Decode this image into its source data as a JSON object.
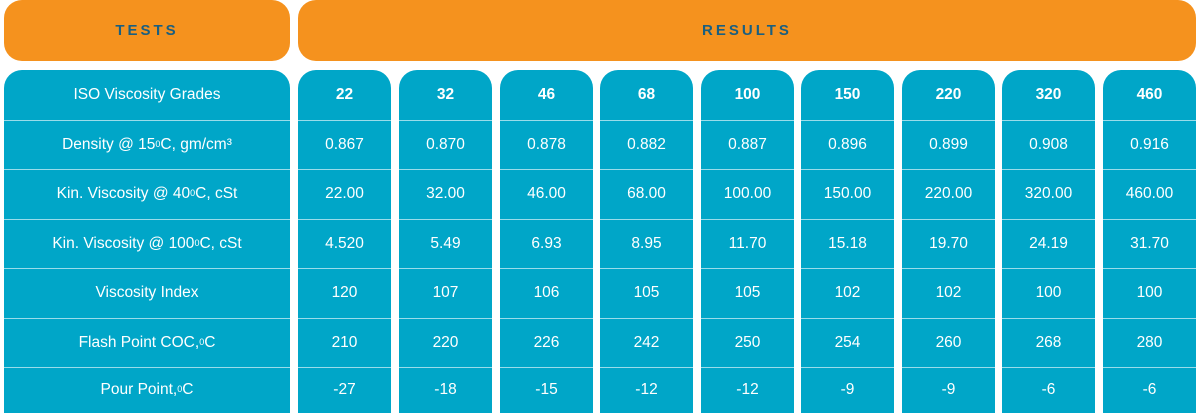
{
  "header": {
    "tests_label": "TESTS",
    "results_label": "RESULTS"
  },
  "colors": {
    "header_bg": "#f5921e",
    "header_text": "#1a5f80",
    "table_bg": "#00a6c8",
    "text": "#ffffff"
  },
  "rows": [
    {
      "label_pre": "ISO Viscosity Grades",
      "sup": "",
      "label_post": "",
      "values": [
        "22",
        "32",
        "46",
        "68",
        "100",
        "150",
        "220",
        "320",
        "460"
      ]
    },
    {
      "label_pre": "Density @ 15 ",
      "sup": "0",
      "label_post": "C, gm/cm³",
      "values": [
        "0.867",
        "0.870",
        "0.878",
        "0.882",
        "0.887",
        "0.896",
        "0.899",
        "0.908",
        "0.916"
      ]
    },
    {
      "label_pre": "Kin. Viscosity @ 40 ",
      "sup": "0",
      "label_post": "C, cSt",
      "values": [
        "22.00",
        "32.00",
        "46.00",
        "68.00",
        "100.00",
        "150.00",
        "220.00",
        "320.00",
        "460.00"
      ]
    },
    {
      "label_pre": "Kin. Viscosity @ 100 ",
      "sup": "0",
      "label_post": "C, cSt",
      "values": [
        "4.520",
        "5.49",
        "6.93",
        "8.95",
        "11.70",
        "15.18",
        "19.70",
        "24.19",
        "31.70"
      ]
    },
    {
      "label_pre": "Viscosity Index",
      "sup": "",
      "label_post": "",
      "values": [
        "120",
        "107",
        "106",
        "105",
        "105",
        "102",
        "102",
        "100",
        "100"
      ]
    },
    {
      "label_pre": "Flash Point COC, ",
      "sup": "0",
      "label_post": "C",
      "values": [
        "210",
        "220",
        "226",
        "242",
        "250",
        "254",
        "260",
        "268",
        "280"
      ]
    },
    {
      "label_pre": "Pour Point, ",
      "sup": "0",
      "label_post": "C",
      "values": [
        "-27",
        "-18",
        "-15",
        "-12",
        "-12",
        "-9",
        "-9",
        "-6",
        "-6"
      ]
    }
  ]
}
